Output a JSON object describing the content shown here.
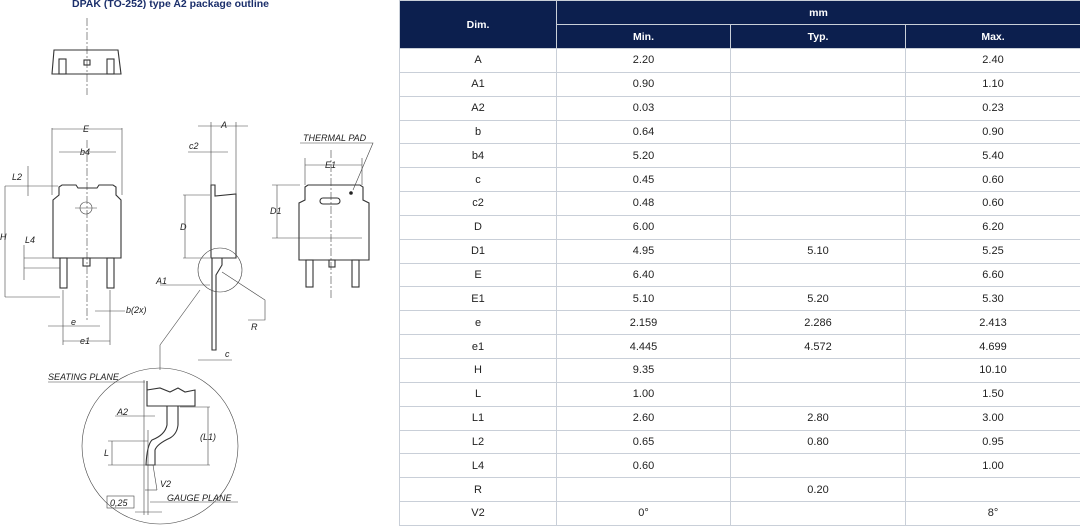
{
  "title": "DPAK (TO-252) type A2 package outline",
  "drawing_labels": {
    "E": "E",
    "b4": "b4",
    "L2": "L2",
    "H": "H",
    "L4": "L4",
    "e": "e",
    "e1": "e1",
    "b2x": "b(2x)",
    "A": "A",
    "c2": "c2",
    "D": "D",
    "A1": "A1",
    "R": "R",
    "c": "c",
    "thermal_pad": "THERMAL  PAD",
    "E1": "E1",
    "D1": "D1",
    "seating_plane": "SEATING  PLANE",
    "A2": "A2",
    "L1": "(L1)",
    "L": "L",
    "V2": "V2",
    "gauge": "0,25",
    "gauge_plane": "GAUGE  PLANE"
  },
  "table": {
    "header_dim": "Dim.",
    "header_unit": "mm",
    "columns": [
      "Min.",
      "Typ.",
      "Max."
    ],
    "rows": [
      [
        "A",
        "2.20",
        "",
        "2.40"
      ],
      [
        "A1",
        "0.90",
        "",
        "1.10"
      ],
      [
        "A2",
        "0.03",
        "",
        "0.23"
      ],
      [
        "b",
        "0.64",
        "",
        "0.90"
      ],
      [
        "b4",
        "5.20",
        "",
        "5.40"
      ],
      [
        "c",
        "0.45",
        "",
        "0.60"
      ],
      [
        "c2",
        "0.48",
        "",
        "0.60"
      ],
      [
        "D",
        "6.00",
        "",
        "6.20"
      ],
      [
        "D1",
        "4.95",
        "5.10",
        "5.25"
      ],
      [
        "E",
        "6.40",
        "",
        "6.60"
      ],
      [
        "E1",
        "5.10",
        "5.20",
        "5.30"
      ],
      [
        "e",
        "2.159",
        "2.286",
        "2.413"
      ],
      [
        "e1",
        "4.445",
        "4.572",
        "4.699"
      ],
      [
        "H",
        "9.35",
        "",
        "10.10"
      ],
      [
        "L",
        "1.00",
        "",
        "1.50"
      ],
      [
        "L1",
        "2.60",
        "2.80",
        "3.00"
      ],
      [
        "L2",
        "0.65",
        "0.80",
        "0.95"
      ],
      [
        "L4",
        "0.60",
        "",
        "1.00"
      ],
      [
        "R",
        "",
        "0.20",
        ""
      ],
      [
        "V2",
        "0°",
        "",
        "8°"
      ]
    ]
  }
}
